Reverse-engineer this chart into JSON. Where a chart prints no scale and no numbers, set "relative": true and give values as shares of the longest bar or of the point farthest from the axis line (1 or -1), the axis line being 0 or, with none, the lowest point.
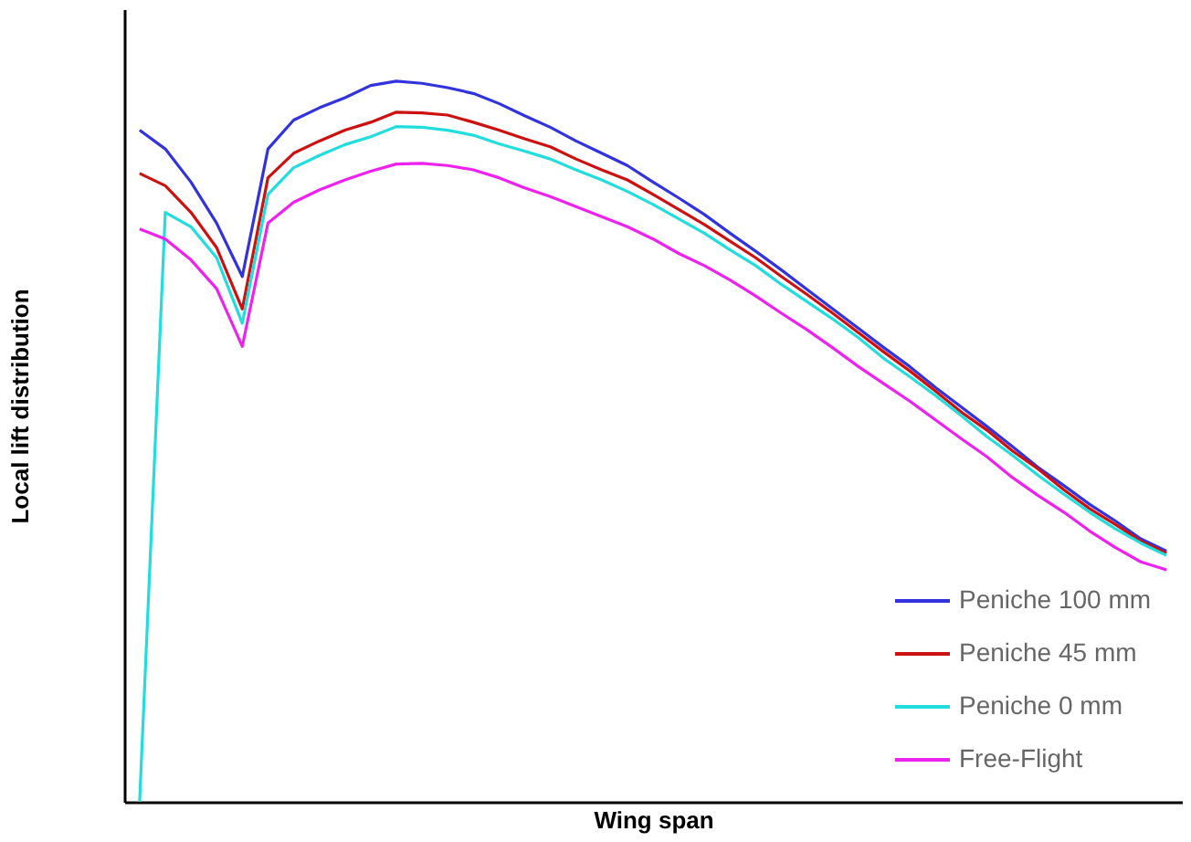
{
  "chart_data": {
    "type": "line",
    "relative": true,
    "xlabel": "Wing span",
    "ylabel": "Local lift distribution",
    "tick_labels": false,
    "legend": "bottom right",
    "grid": false,
    "marker": "none",
    "line_style": "solid",
    "categories": [
      null,
      null,
      null,
      null,
      null,
      null,
      null,
      null,
      null,
      null,
      null,
      null,
      null,
      null,
      null,
      null,
      null,
      null,
      null,
      null,
      null,
      null,
      null,
      null,
      null,
      null,
      null,
      null,
      null,
      null,
      null,
      null,
      null,
      null,
      null,
      null,
      null,
      null,
      null,
      null,
      null
    ],
    "series": [
      {
        "name": "Peniche 100 mm",
        "color": "#3333dd",
        "values": [
          0.932,
          0.906,
          0.86,
          0.803,
          0.729,
          0.906,
          0.946,
          0.963,
          0.977,
          0.994,
          1.0,
          0.997,
          0.991,
          0.983,
          0.969,
          0.952,
          0.936,
          0.917,
          0.9,
          0.883,
          0.86,
          0.838,
          0.815,
          0.789,
          0.764,
          0.738,
          0.711,
          0.684,
          0.657,
          0.63,
          0.604,
          0.575,
          0.548,
          0.521,
          0.493,
          0.464,
          0.439,
          0.413,
          0.39,
          0.365,
          0.348
        ]
      },
      {
        "name": "Peniche 45 mm",
        "color": "#cc1111",
        "values": [
          0.872,
          0.855,
          0.818,
          0.769,
          0.684,
          0.866,
          0.9,
          0.917,
          0.932,
          0.943,
          0.957,
          0.956,
          0.953,
          0.943,
          0.932,
          0.92,
          0.909,
          0.892,
          0.877,
          0.863,
          0.843,
          0.822,
          0.801,
          0.778,
          0.755,
          0.729,
          0.704,
          0.678,
          0.651,
          0.624,
          0.598,
          0.57,
          0.541,
          0.516,
          0.487,
          0.462,
          0.433,
          0.407,
          0.385,
          0.362,
          0.345
        ]
      },
      {
        "name": "Peniche 0 mm",
        "color": "#22dddd",
        "values": [
          0,
          0.818,
          0.798,
          0.755,
          0.664,
          0.843,
          0.88,
          0.897,
          0.912,
          0.923,
          0.937,
          0.936,
          0.932,
          0.925,
          0.913,
          0.903,
          0.892,
          0.877,
          0.863,
          0.847,
          0.829,
          0.809,
          0.789,
          0.766,
          0.744,
          0.718,
          0.694,
          0.67,
          0.644,
          0.615,
          0.59,
          0.564,
          0.536,
          0.507,
          0.481,
          0.453,
          0.427,
          0.402,
          0.379,
          0.359,
          0.342
        ]
      },
      {
        "name": "Free-Flight",
        "color": "#ee22ee",
        "values": [
          0.795,
          0.781,
          0.752,
          0.712,
          0.632,
          0.803,
          0.832,
          0.849,
          0.863,
          0.875,
          0.885,
          0.886,
          0.883,
          0.877,
          0.866,
          0.852,
          0.84,
          0.826,
          0.812,
          0.798,
          0.781,
          0.761,
          0.744,
          0.724,
          0.702,
          0.678,
          0.655,
          0.63,
          0.604,
          0.58,
          0.556,
          0.53,
          0.504,
          0.479,
          0.45,
          0.425,
          0.402,
          0.376,
          0.353,
          0.333,
          0.322
        ]
      }
    ]
  }
}
